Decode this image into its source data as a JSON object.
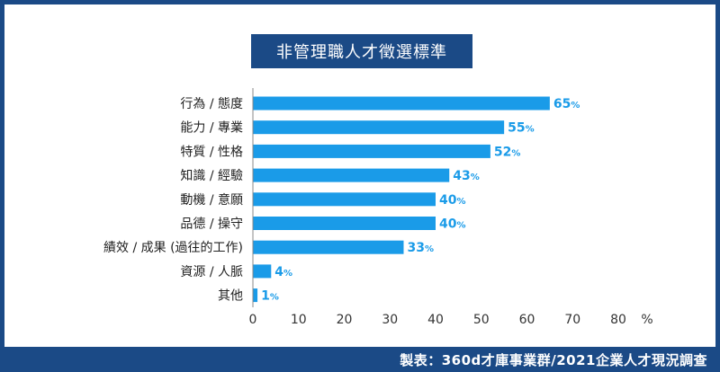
{
  "chart_data": {
    "type": "bar",
    "orientation": "horizontal",
    "title": "非管理職人才徵選標準",
    "categories": [
      "行為 / 態度",
      "能力 / 專業",
      "特質 / 性格",
      "知識 / 經驗",
      "動機 / 意願",
      "品德 / 操守",
      "績效 / 成果 (過往的工作)",
      "資源 / 人脈",
      "其他"
    ],
    "values": [
      65,
      55,
      52,
      43,
      40,
      40,
      33,
      4,
      1
    ],
    "value_suffix": "%",
    "xlim": [
      0,
      80
    ],
    "xticks": [
      0,
      10,
      20,
      30,
      40,
      50,
      60,
      70,
      80
    ],
    "xunit": "%",
    "grid": false,
    "bar_color": "#1a9be8"
  },
  "footer": {
    "source": "製表：360d才庫事業群/2021企業人才現況調查"
  },
  "colors": {
    "brand": "#1b4a86",
    "bar": "#1a9be8"
  }
}
